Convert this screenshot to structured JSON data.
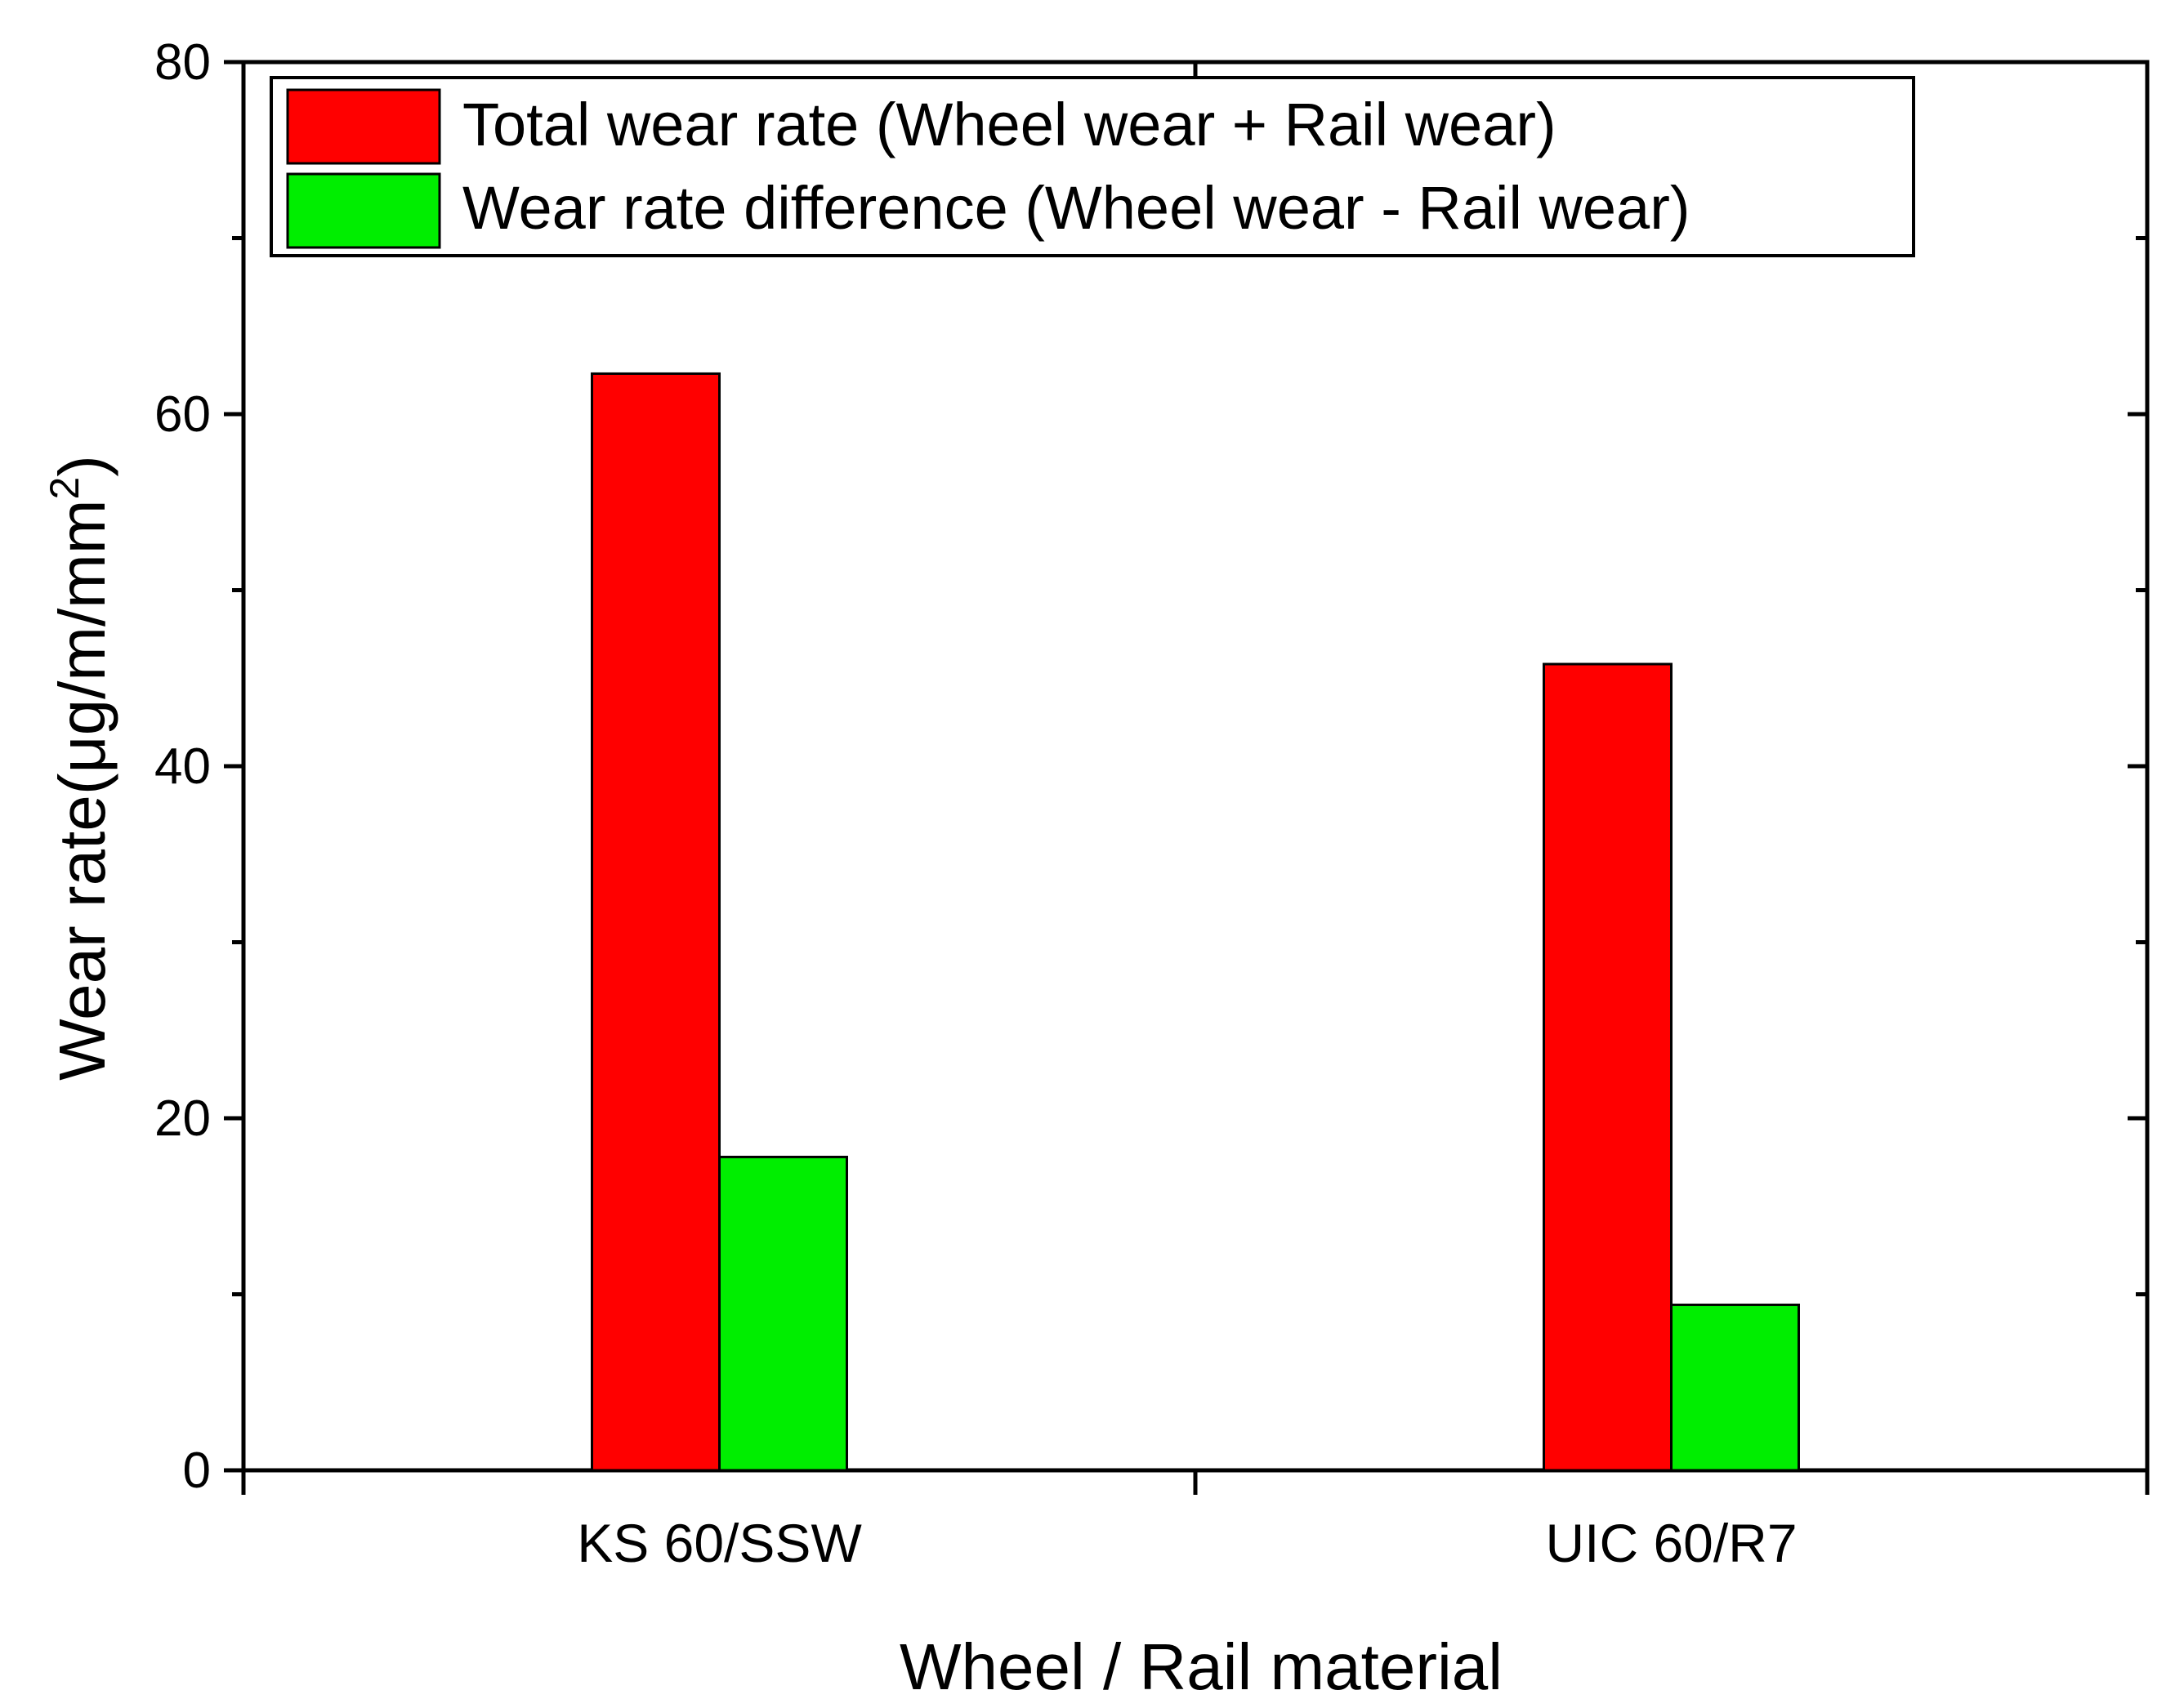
{
  "chart_data": {
    "type": "bar",
    "categories": [
      "KS 60/SSW",
      "UIC 60/R7"
    ],
    "series": [
      {
        "name": "Total wear rate (Wheel wear + Rail wear)",
        "color": "#ff0000",
        "values": [
          62.3,
          45.8
        ]
      },
      {
        "name": "Wear rate difference (Wheel wear - Rail wear)",
        "color": "#00ee00",
        "values": [
          17.8,
          9.4
        ]
      }
    ],
    "xlabel": "Wheel / Rail material",
    "ylabel_main": "Wear rate(μg/m/mm",
    "ylabel_sup": "2",
    "ylabel_close": ")",
    "ylim": [
      0,
      80
    ],
    "yticks": [
      "0",
      "20",
      "40",
      "60",
      "80"
    ],
    "legend_position": "top-left",
    "grid": false
  }
}
